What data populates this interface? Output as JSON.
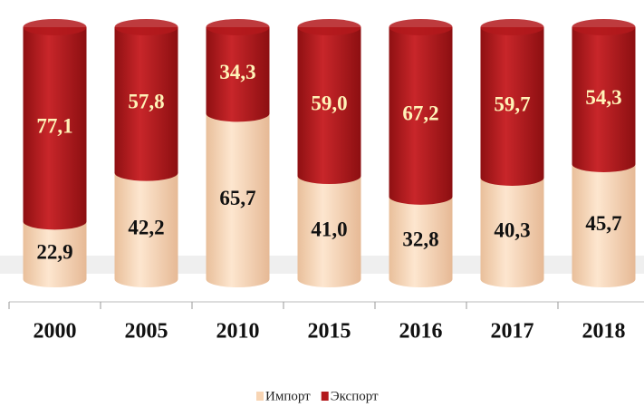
{
  "chart_data": {
    "type": "stacked-cylinder",
    "categories": [
      "2000",
      "2005",
      "2010",
      "2015",
      "2016",
      "2017",
      "2018"
    ],
    "series": [
      {
        "name": "Импорт",
        "color": "#f8d5b4",
        "values": [
          22.9,
          42.2,
          65.7,
          41.0,
          32.8,
          40.3,
          45.7
        ],
        "value_labels": [
          "22,9",
          "42,2",
          "65,7",
          "41,0",
          "32,8",
          "40,3",
          "45,7"
        ]
      },
      {
        "name": "Экспорт",
        "color": "#b3191c",
        "values": [
          77.1,
          57.8,
          34.3,
          59.0,
          67.2,
          59.7,
          54.3
        ],
        "value_labels": [
          "77,1",
          "57,8",
          "34,3",
          "59,0",
          "67,2",
          "59,7",
          "54,3"
        ]
      }
    ],
    "legend": "bottom"
  }
}
